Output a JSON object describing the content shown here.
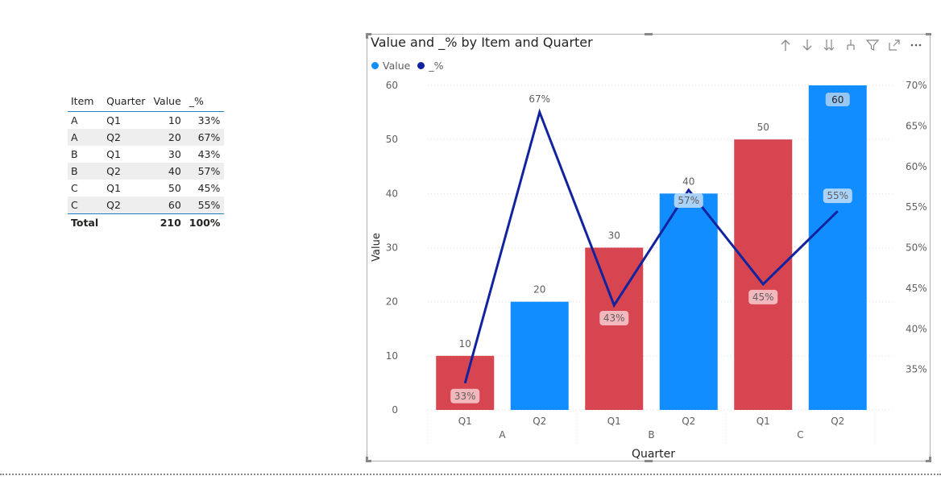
{
  "table": {
    "headers": [
      "Item",
      "Quarter",
      "Value",
      "_%"
    ],
    "rows": [
      [
        "A",
        "Q1",
        "10",
        "33%"
      ],
      [
        "A",
        "Q2",
        "20",
        "67%"
      ],
      [
        "B",
        "Q1",
        "30",
        "43%"
      ],
      [
        "B",
        "Q2",
        "40",
        "57%"
      ],
      [
        "C",
        "Q1",
        "50",
        "45%"
      ],
      [
        "C",
        "Q2",
        "60",
        "55%"
      ]
    ],
    "total": {
      "label": "Total",
      "value": "210",
      "pct": "100%"
    }
  },
  "chart": {
    "title": "Value and _% by Item and Quarter",
    "legend": [
      {
        "label": "Value",
        "color": "#118dff"
      },
      {
        "label": "_%",
        "color": "#12239e"
      }
    ],
    "header_icons": [
      "sort-ascending-icon",
      "sort-descending-icon",
      "expand-all-down-icon",
      "drill-down-icon",
      "filter-icon",
      "focus-mode-icon",
      "more-options-icon"
    ]
  },
  "chart_data": {
    "type": "bar",
    "title": "Value and _% by Item and Quarter",
    "xlabel": "Quarter",
    "ylabel": "Value",
    "categories": [
      "Q1",
      "Q2",
      "Q1",
      "Q2",
      "Q1",
      "Q2"
    ],
    "groups": [
      {
        "label": "A",
        "count": 2
      },
      {
        "label": "B",
        "count": 2
      },
      {
        "label": "C",
        "count": 2
      }
    ],
    "series": [
      {
        "name": "Value",
        "type": "bar",
        "values": [
          10,
          20,
          30,
          40,
          50,
          60
        ],
        "data_labels": [
          "10",
          "20",
          "30",
          "40",
          "50",
          "60"
        ],
        "colors": [
          "#d64550",
          "#118dff",
          "#d64550",
          "#118dff",
          "#d64550",
          "#118dff"
        ]
      },
      {
        "name": "_%",
        "type": "line",
        "axis": "secondary",
        "values": [
          33.3,
          66.7,
          42.9,
          57.1,
          45.5,
          54.5
        ],
        "data_labels": [
          "33%",
          "67%",
          "43%",
          "57%",
          "45%",
          "55%"
        ],
        "color": "#12239e"
      }
    ],
    "ylim": [
      0,
      60
    ],
    "yticks": [
      0,
      10,
      20,
      30,
      40,
      50,
      60
    ],
    "y2lim": [
      30,
      70
    ],
    "y2ticks": [
      "35%",
      "40%",
      "45%",
      "50%",
      "55%",
      "60%",
      "65%",
      "70%"
    ],
    "y2tick_values": [
      35,
      40,
      45,
      50,
      55,
      60,
      65,
      70
    ],
    "grid": true,
    "legend_position": "top-left"
  }
}
